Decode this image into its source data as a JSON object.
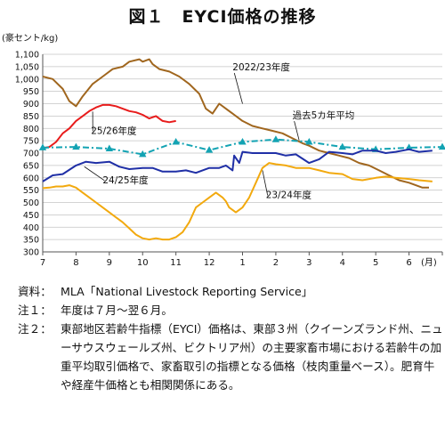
{
  "title": "図１　EYCI価格の推移",
  "chart_data": {
    "type": "line",
    "ylabel": "(豪セント/kg)",
    "xlabel": "(月)",
    "ylim": [
      300,
      1100
    ],
    "yticks": [
      300,
      350,
      400,
      450,
      500,
      550,
      600,
      650,
      700,
      750,
      800,
      850,
      900,
      950,
      1000,
      1050,
      1100
    ],
    "ytick_labels": [
      "300",
      "350",
      "400",
      "450",
      "500",
      "550",
      "600",
      "650",
      "700",
      "750",
      "800",
      "850",
      "900",
      "950",
      "1,000",
      "1,050",
      "1,100"
    ],
    "categories": [
      "7",
      "8",
      "9",
      "10",
      "11",
      "12",
      "1",
      "2",
      "3",
      "4",
      "5",
      "6"
    ],
    "grid": "horizontal",
    "series": [
      {
        "name": "2022/23年度",
        "color": "#a0661e",
        "style": "solid",
        "x": [
          0.0,
          0.3,
          0.6,
          0.8,
          1.0,
          1.2,
          1.5,
          1.8,
          2.1,
          2.4,
          2.6,
          2.9,
          3.0,
          3.2,
          3.3,
          3.5,
          3.8,
          4.1,
          4.4,
          4.7,
          4.9,
          5.1,
          5.3,
          5.5,
          5.7,
          6.0,
          6.3,
          6.6,
          6.9,
          7.2,
          7.5,
          7.8,
          8.0,
          8.3,
          8.6,
          8.9,
          9.2,
          9.5,
          9.8,
          10.1,
          10.4,
          10.7,
          11.0,
          11.2,
          11.4,
          11.6
        ],
        "values": [
          1010,
          1000,
          960,
          910,
          890,
          930,
          980,
          1010,
          1040,
          1050,
          1070,
          1080,
          1070,
          1080,
          1060,
          1040,
          1030,
          1010,
          980,
          940,
          880,
          860,
          900,
          880,
          860,
          830,
          810,
          800,
          790,
          780,
          760,
          740,
          730,
          710,
          700,
          690,
          680,
          660,
          650,
          630,
          610,
          590,
          580,
          570,
          560,
          560
        ]
      },
      {
        "name": "25/26年度",
        "color": "#e81c1c",
        "style": "solid",
        "x": [
          0.0,
          0.2,
          0.4,
          0.6,
          0.8,
          1.0,
          1.2,
          1.4,
          1.6,
          1.8,
          2.0,
          2.2,
          2.4,
          2.6,
          2.8,
          3.0,
          3.2,
          3.4,
          3.6,
          3.8,
          4.0
        ],
        "values": [
          720,
          725,
          745,
          780,
          800,
          830,
          850,
          870,
          885,
          895,
          895,
          890,
          880,
          870,
          865,
          855,
          840,
          850,
          830,
          825,
          830
        ]
      },
      {
        "name": "過去5カ年平均",
        "color": "#13a3b3",
        "style": "dashdot",
        "markers": true,
        "x": [
          0,
          1,
          2,
          3,
          4,
          5,
          6,
          7,
          8,
          9,
          10,
          11,
          12
        ],
        "values": [
          722,
          725,
          718,
          695,
          745,
          712,
          745,
          755,
          745,
          725,
          715,
          722,
          725
        ]
      },
      {
        "name": "24/25年度",
        "color": "#1f2fa6",
        "style": "solid",
        "x": [
          0.0,
          0.3,
          0.6,
          1.0,
          1.3,
          1.6,
          2.0,
          2.3,
          2.6,
          3.0,
          3.3,
          3.6,
          4.0,
          4.3,
          4.6,
          5.0,
          5.3,
          5.5,
          5.7,
          5.75,
          5.9,
          6.0,
          6.3,
          6.6,
          7.0,
          7.3,
          7.6,
          8.0,
          8.3,
          8.6,
          9.0,
          9.3,
          9.6,
          10.0,
          10.3,
          10.6,
          11.0,
          11.3,
          11.7
        ],
        "values": [
          585,
          610,
          615,
          650,
          665,
          660,
          665,
          645,
          635,
          640,
          640,
          625,
          625,
          630,
          620,
          640,
          640,
          650,
          630,
          690,
          660,
          705,
          700,
          700,
          700,
          690,
          695,
          660,
          675,
          705,
          700,
          695,
          710,
          710,
          700,
          705,
          715,
          705,
          710
        ]
      },
      {
        "name": "23/24年度",
        "color": "#f2a90e",
        "style": "solid",
        "x": [
          0.0,
          0.2,
          0.4,
          0.6,
          0.8,
          1.0,
          1.2,
          1.4,
          1.6,
          1.8,
          2.0,
          2.2,
          2.4,
          2.6,
          2.8,
          3.0,
          3.2,
          3.4,
          3.6,
          3.8,
          4.0,
          4.2,
          4.4,
          4.6,
          4.8,
          5.0,
          5.2,
          5.4,
          5.5,
          5.6,
          5.8,
          6.0,
          6.2,
          6.4,
          6.6,
          6.8,
          7.0,
          7.3,
          7.6,
          8.0,
          8.3,
          8.6,
          9.0,
          9.3,
          9.6,
          10.0,
          10.3,
          10.6,
          11.0,
          11.3,
          11.7
        ],
        "values": [
          558,
          560,
          565,
          565,
          570,
          560,
          540,
          520,
          500,
          480,
          460,
          440,
          420,
          395,
          370,
          355,
          350,
          355,
          350,
          350,
          360,
          380,
          420,
          480,
          500,
          520,
          540,
          520,
          505,
          480,
          460,
          480,
          520,
          580,
          640,
          660,
          655,
          650,
          640,
          640,
          630,
          620,
          615,
          595,
          590,
          600,
          605,
          600,
          595,
          590,
          585
        ]
      }
    ],
    "annotations": [
      {
        "text": "2022/23年度",
        "series": 0,
        "label_x": 5.7,
        "label_y": 1035,
        "point_x": 6.0,
        "point_y": 900
      },
      {
        "text": "過去5カ年平均",
        "series": 2,
        "label_x": 7.5,
        "label_y": 840,
        "point_x": 7.7,
        "point_y": 752
      },
      {
        "text": "25/26年度",
        "series": 1,
        "label_x": 1.45,
        "label_y": 778,
        "point_x": 1.5,
        "point_y": 868
      },
      {
        "text": "24/25年度",
        "series": 3,
        "label_x": 1.8,
        "label_y": 578,
        "point_x": 1.25,
        "point_y": 645
      },
      {
        "text": "23/24年度",
        "series": 4,
        "label_x": 6.7,
        "label_y": 518,
        "point_x": 6.6,
        "point_y": 630
      }
    ]
  },
  "notes": [
    {
      "label": "資料：",
      "text": "MLA「National Livestock Reporting Service」"
    },
    {
      "label": "注１：",
      "text": "年度は７月～翌６月。"
    },
    {
      "label": "注２：",
      "text": "東部地区若齢牛指標（EYCI）価格は、東部３州（クイーンズランド州、ニューサウスウェールズ州、ビクトリア州）の主要家畜市場における若齢牛の加重平均取引価格で、家畜取引の指標となる価格（枝肉重量ベース）。肥育牛や経産牛価格とも相関関係にある。"
    }
  ]
}
